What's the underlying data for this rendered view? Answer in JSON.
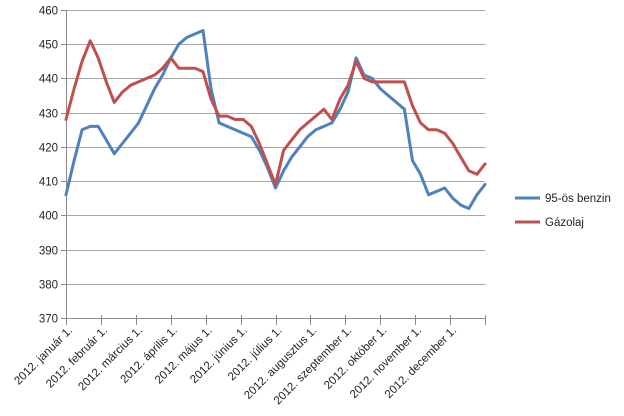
{
  "chart_data": {
    "type": "line",
    "title": "",
    "xlabel": "",
    "ylabel": "",
    "ylim": [
      370,
      460
    ],
    "y_step": 10,
    "grid": true,
    "legend_position": "right",
    "x_tick_labels": [
      "2012. január 1.",
      "2012. február 1.",
      "2012. március 1.",
      "2012. április 1.",
      "2012. május 1.",
      "2012. június 1.",
      "2012. július 1.",
      "2012. augusztus 1.",
      "2012. szeptember 1.",
      "2012. október 1.",
      "2012. november 1.",
      "2012. december 1."
    ],
    "series": [
      {
        "name": "95-ös benzin",
        "color": "#4F81BD",
        "values": [
          406,
          416,
          425,
          426,
          426,
          422,
          418,
          421,
          424,
          427,
          432,
          437,
          441,
          446,
          450,
          452,
          453,
          454,
          437,
          427,
          426,
          425,
          424,
          423,
          419,
          414,
          408,
          413,
          417,
          420,
          423,
          425,
          426,
          427,
          431,
          436,
          446,
          441,
          440,
          437,
          435,
          433,
          431,
          416,
          412,
          406,
          407,
          408,
          405,
          403,
          402,
          406,
          409
        ]
      },
      {
        "name": "Gázolaj",
        "color": "#C0504D",
        "values": [
          428,
          437,
          445,
          451,
          446,
          439,
          433,
          436,
          438,
          439,
          440,
          441,
          443,
          446,
          443,
          443,
          443,
          442,
          434,
          429,
          429,
          428,
          428,
          426,
          421,
          415,
          409,
          419,
          422,
          425,
          427,
          429,
          431,
          428,
          434,
          438,
          445,
          440,
          439,
          439,
          439,
          439,
          439,
          432,
          427,
          425,
          425,
          424,
          421,
          417,
          413,
          412,
          415
        ]
      }
    ]
  },
  "styles": {
    "gridline_color": "#A6A6A6",
    "axis_color": "#8C8C8C",
    "text_color": "#1F1F1F",
    "background_color": "#FFFFFF"
  }
}
